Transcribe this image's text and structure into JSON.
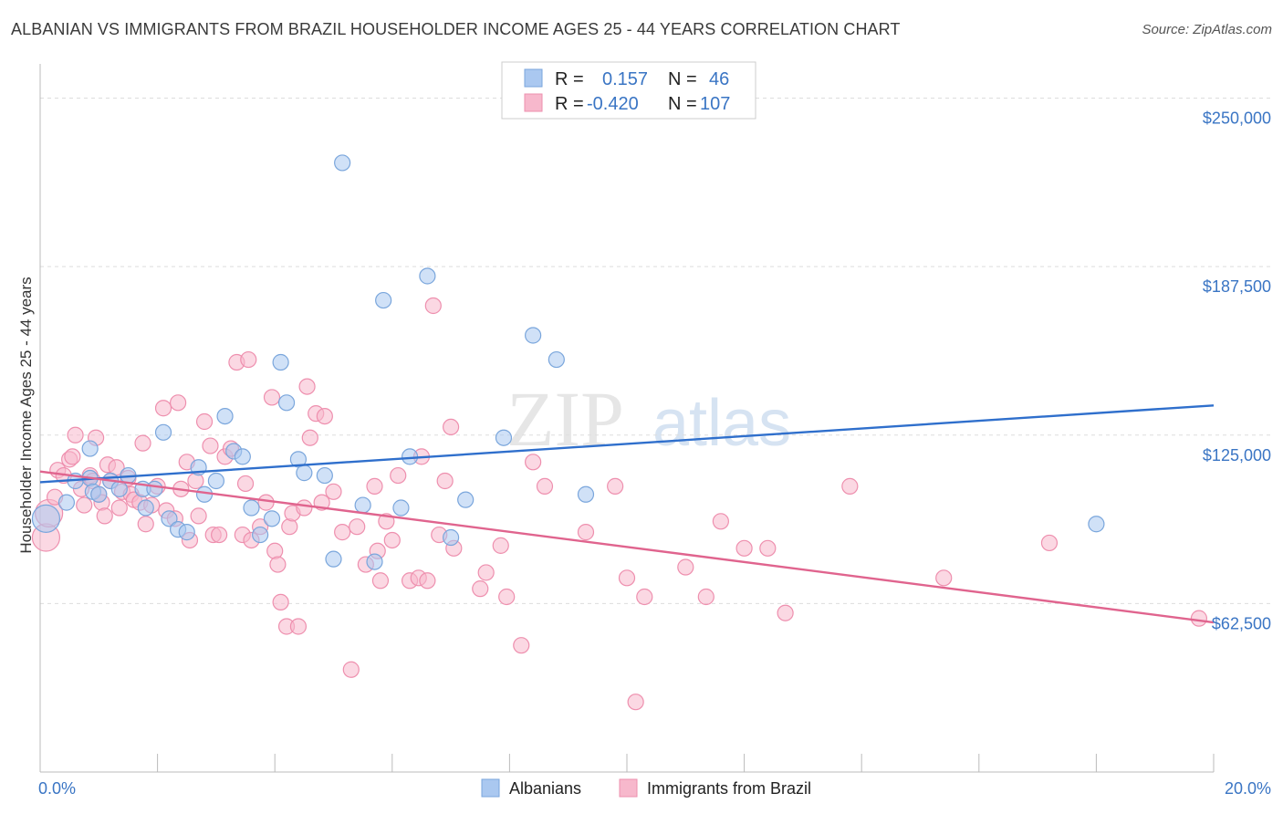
{
  "title": "ALBANIAN VS IMMIGRANTS FROM BRAZIL HOUSEHOLDER INCOME AGES 25 - 44 YEARS CORRELATION CHART",
  "source": "Source: ZipAtlas.com",
  "watermark": {
    "part1": "ZIP",
    "part2": "atlas"
  },
  "colors": {
    "albanians_fill": "#aac8f0",
    "albanians_stroke": "#7aa6dc",
    "albanians_line": "#2f6fcc",
    "brazil_fill": "#f7b8cc",
    "brazil_stroke": "#ee8fae",
    "brazil_line": "#e0648e",
    "tick_text": "#3a75c4",
    "grid": "#dddddd"
  },
  "legend": {
    "rows": [
      {
        "r_label": "R =",
        "r_value": "0.157",
        "n_label": "N =",
        "n_value": "46"
      },
      {
        "r_label": "R =",
        "r_value": "-0.420",
        "n_label": "N =",
        "n_value": "107"
      }
    ]
  },
  "chart_data": {
    "type": "scatter",
    "title": "ALBANIAN VS IMMIGRANTS FROM BRAZIL HOUSEHOLDER INCOME AGES 25 - 44 YEARS CORRELATION CHART",
    "xlabel": "",
    "ylabel": "Householder Income Ages 25 - 44 years",
    "xlim": [
      0,
      20
    ],
    "ylim": [
      0,
      260000
    ],
    "x_tick_labels": [
      "0.0%",
      "20.0%"
    ],
    "y_ticks": [
      62500,
      125000,
      187500,
      250000
    ],
    "y_tick_labels": [
      "$62,500",
      "$125,000",
      "$187,500",
      "$250,000"
    ],
    "grid": true,
    "legend_position": "top-center",
    "series": [
      {
        "name": "Albanians",
        "trend": [
          [
            0,
            107500
          ],
          [
            20,
            136000
          ]
        ],
        "points": [
          [
            0.1,
            94000
          ],
          [
            0.45,
            100000
          ],
          [
            0.6,
            108000
          ],
          [
            0.85,
            109000
          ],
          [
            0.9,
            104000
          ],
          [
            0.85,
            120000
          ],
          [
            1.0,
            103000
          ],
          [
            1.2,
            108000
          ],
          [
            1.35,
            105000
          ],
          [
            1.5,
            110000
          ],
          [
            1.75,
            105000
          ],
          [
            1.8,
            98000
          ],
          [
            1.95,
            105000
          ],
          [
            2.1,
            126000
          ],
          [
            2.2,
            94000
          ],
          [
            2.35,
            90000
          ],
          [
            2.5,
            89000
          ],
          [
            2.7,
            113000
          ],
          [
            2.8,
            103000
          ],
          [
            3.0,
            108000
          ],
          [
            3.15,
            132000
          ],
          [
            3.3,
            119000
          ],
          [
            3.45,
            117000
          ],
          [
            3.6,
            98000
          ],
          [
            3.75,
            88000
          ],
          [
            3.95,
            94000
          ],
          [
            4.1,
            152000
          ],
          [
            4.2,
            137000
          ],
          [
            4.4,
            116000
          ],
          [
            4.5,
            111000
          ],
          [
            4.85,
            110000
          ],
          [
            5.0,
            79000
          ],
          [
            5.15,
            226000
          ],
          [
            5.5,
            99000
          ],
          [
            5.7,
            78000
          ],
          [
            5.85,
            175000
          ],
          [
            6.15,
            98000
          ],
          [
            6.3,
            117000
          ],
          [
            6.6,
            184000
          ],
          [
            7.0,
            87000
          ],
          [
            7.25,
            101000
          ],
          [
            7.9,
            124000
          ],
          [
            8.4,
            162000
          ],
          [
            8.8,
            153000
          ],
          [
            9.3,
            103000
          ],
          [
            18.0,
            92000
          ]
        ]
      },
      {
        "name": "Immigrants from Brazil",
        "trend": [
          [
            0,
            111500
          ],
          [
            20,
            55500
          ]
        ],
        "points": [
          [
            0.1,
            87000
          ],
          [
            0.15,
            96000
          ],
          [
            0.25,
            102000
          ],
          [
            0.3,
            112000
          ],
          [
            0.4,
            110000
          ],
          [
            0.5,
            116000
          ],
          [
            0.55,
            117000
          ],
          [
            0.6,
            125000
          ],
          [
            0.7,
            105000
          ],
          [
            0.75,
            99000
          ],
          [
            0.85,
            110000
          ],
          [
            0.9,
            108000
          ],
          [
            0.95,
            124000
          ],
          [
            1.0,
            103000
          ],
          [
            1.05,
            100000
          ],
          [
            1.1,
            95000
          ],
          [
            1.15,
            114000
          ],
          [
            1.2,
            108000
          ],
          [
            1.3,
            113000
          ],
          [
            1.35,
            98000
          ],
          [
            1.4,
            104000
          ],
          [
            1.5,
            109000
          ],
          [
            1.55,
            103000
          ],
          [
            1.6,
            101000
          ],
          [
            1.7,
            100000
          ],
          [
            1.75,
            122000
          ],
          [
            1.8,
            92000
          ],
          [
            1.9,
            99000
          ],
          [
            2.0,
            106000
          ],
          [
            2.1,
            135000
          ],
          [
            2.15,
            97000
          ],
          [
            2.3,
            94000
          ],
          [
            2.35,
            137000
          ],
          [
            2.4,
            105000
          ],
          [
            2.5,
            115000
          ],
          [
            2.55,
            86000
          ],
          [
            2.65,
            108000
          ],
          [
            2.7,
            95000
          ],
          [
            2.8,
            130000
          ],
          [
            2.9,
            121000
          ],
          [
            2.95,
            88000
          ],
          [
            3.05,
            88000
          ],
          [
            3.15,
            117000
          ],
          [
            3.25,
            120000
          ],
          [
            3.35,
            152000
          ],
          [
            3.45,
            88000
          ],
          [
            3.5,
            107000
          ],
          [
            3.55,
            153000
          ],
          [
            3.6,
            86000
          ],
          [
            3.75,
            91000
          ],
          [
            3.85,
            100000
          ],
          [
            3.95,
            139000
          ],
          [
            4.0,
            82000
          ],
          [
            4.05,
            77000
          ],
          [
            4.1,
            63000
          ],
          [
            4.2,
            54000
          ],
          [
            4.25,
            91000
          ],
          [
            4.3,
            96000
          ],
          [
            4.4,
            54000
          ],
          [
            4.5,
            98000
          ],
          [
            4.55,
            143000
          ],
          [
            4.6,
            124000
          ],
          [
            4.7,
            133000
          ],
          [
            4.8,
            100000
          ],
          [
            4.85,
            132000
          ],
          [
            5.0,
            104000
          ],
          [
            5.15,
            89000
          ],
          [
            5.3,
            38000
          ],
          [
            5.4,
            91000
          ],
          [
            5.55,
            77000
          ],
          [
            5.7,
            106000
          ],
          [
            5.75,
            82000
          ],
          [
            5.8,
            71000
          ],
          [
            5.9,
            93000
          ],
          [
            6.0,
            86000
          ],
          [
            6.1,
            110000
          ],
          [
            6.3,
            71000
          ],
          [
            6.45,
            72000
          ],
          [
            6.5,
            117000
          ],
          [
            6.6,
            71000
          ],
          [
            6.7,
            173000
          ],
          [
            6.8,
            88000
          ],
          [
            6.9,
            108000
          ],
          [
            7.0,
            128000
          ],
          [
            7.05,
            83000
          ],
          [
            7.5,
            68000
          ],
          [
            7.6,
            74000
          ],
          [
            7.85,
            84000
          ],
          [
            7.95,
            65000
          ],
          [
            8.2,
            47000
          ],
          [
            8.4,
            115000
          ],
          [
            8.6,
            106000
          ],
          [
            9.3,
            89000
          ],
          [
            9.8,
            106000
          ],
          [
            10.0,
            72000
          ],
          [
            10.15,
            26000
          ],
          [
            10.3,
            65000
          ],
          [
            11.0,
            76000
          ],
          [
            11.35,
            65000
          ],
          [
            11.6,
            93000
          ],
          [
            12.0,
            83000
          ],
          [
            12.4,
            83000
          ],
          [
            12.7,
            59000
          ],
          [
            13.8,
            106000
          ],
          [
            15.4,
            72000
          ],
          [
            17.2,
            85000
          ],
          [
            19.75,
            57000
          ]
        ]
      }
    ]
  },
  "bottom_legend": {
    "items": [
      "Albanians",
      "Immigrants from Brazil"
    ]
  }
}
